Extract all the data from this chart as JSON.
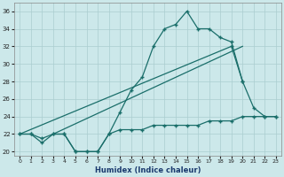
{
  "bg_color": "#cce8ea",
  "grid_color": "#aacdd0",
  "line_color": "#1a6e6a",
  "xlabel": "Humidex (Indice chaleur)",
  "ylim": [
    19.5,
    37
  ],
  "xlim": [
    -0.5,
    23.5
  ],
  "yticks": [
    20,
    22,
    24,
    26,
    28,
    30,
    32,
    34,
    36
  ],
  "xticks": [
    0,
    1,
    2,
    3,
    4,
    5,
    6,
    7,
    8,
    9,
    10,
    11,
    12,
    13,
    14,
    15,
    16,
    17,
    18,
    19,
    20,
    21,
    22,
    23
  ],
  "line1_x": [
    0,
    1,
    2,
    3,
    4,
    5,
    6,
    7,
    8,
    9,
    10,
    11,
    12,
    13,
    14,
    15,
    16,
    17,
    18,
    19,
    20
  ],
  "line1_y": [
    22,
    22,
    21,
    22,
    22,
    20,
    20,
    20,
    22,
    24.5,
    27,
    28.5,
    32,
    34,
    34.5,
    36,
    34,
    34,
    33,
    32.5,
    28
  ],
  "line2_x": [
    0,
    19
  ],
  "line2_y": [
    22,
    32
  ],
  "line3_x": [
    3,
    20
  ],
  "line3_y": [
    22,
    32
  ],
  "line4_x": [
    0,
    1,
    2,
    3,
    4,
    5,
    6,
    7,
    8,
    9,
    10,
    11,
    12,
    13,
    14,
    15,
    16,
    17,
    18,
    19,
    20,
    21,
    22,
    23
  ],
  "line4_y": [
    22,
    22,
    21.5,
    22,
    22,
    20,
    20,
    20,
    22,
    22.5,
    22.5,
    22.5,
    23,
    23,
    23,
    23,
    23,
    23.5,
    23.5,
    23.5,
    24,
    24,
    24,
    24
  ],
  "line5_x": [
    19,
    20,
    21,
    22,
    23
  ],
  "line5_y": [
    32,
    28,
    25,
    24,
    24
  ]
}
